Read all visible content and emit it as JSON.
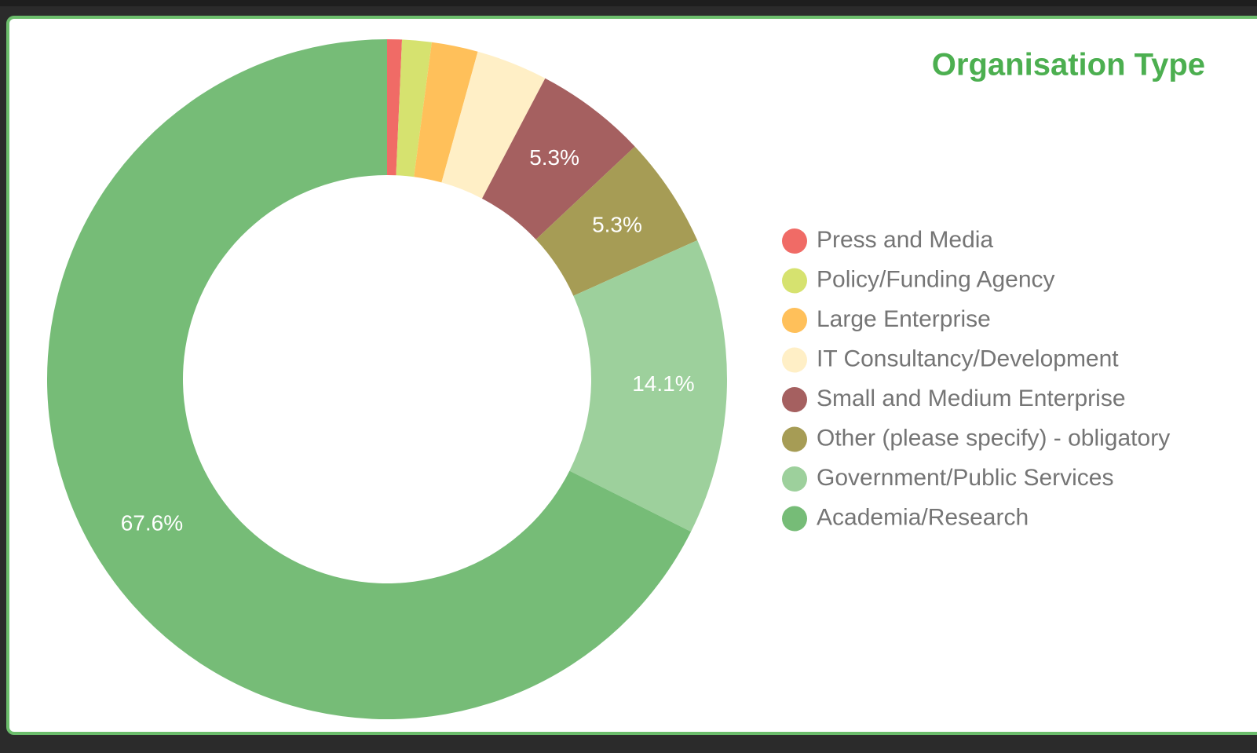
{
  "chart_data": {
    "type": "donut",
    "title": "Organisation Type",
    "categories": [
      "Press and Media",
      "Policy/Funding Agency",
      "Large Enterprise",
      "IT Consultancy/Development",
      "Small and Medium Enterprise",
      "Other (please specify) - obligatory",
      "Government/Public Services",
      "Academia/Research"
    ],
    "values": [
      0.7,
      1.4,
      2.2,
      3.4,
      5.3,
      5.3,
      14.1,
      67.6
    ],
    "value_labels": [
      null,
      null,
      null,
      null,
      "5.3%",
      "5.3%",
      "14.1%",
      "67.6%"
    ],
    "colors": [
      "#f06b66",
      "#d6e26f",
      "#ffc05a",
      "#ffefc6",
      "#a56060",
      "#a69c55",
      "#9dd09c",
      "#76bc77"
    ],
    "legend": "right"
  }
}
